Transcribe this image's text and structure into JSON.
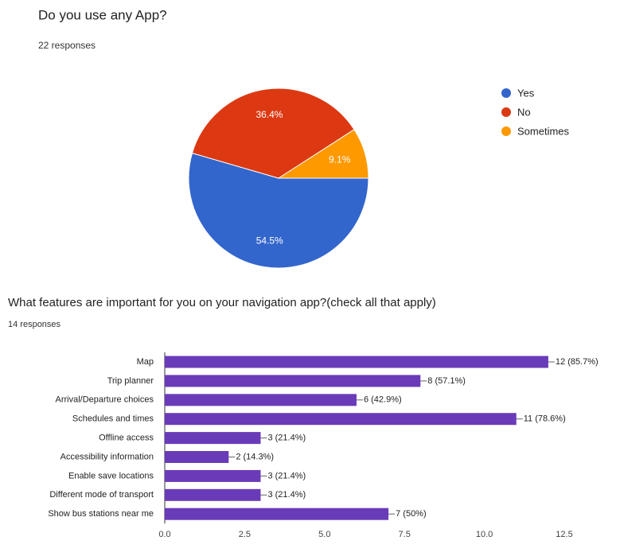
{
  "chart_data": [
    {
      "type": "pie",
      "title": "Do you use any App?",
      "subtitle": "22 responses",
      "categories": [
        "Yes",
        "No",
        "Sometimes"
      ],
      "values": [
        54.5,
        36.4,
        9.1
      ],
      "value_labels": [
        "54.5%",
        "36.4%",
        "9.1%"
      ],
      "colors": [
        "#3366cc",
        "#dc3912",
        "#ff9900"
      ],
      "legend": "right"
    },
    {
      "type": "bar",
      "orientation": "horizontal",
      "title": "What features are important for you on your navigation app?(check all that apply)",
      "subtitle": "14 responses",
      "categories": [
        "Map",
        "Trip planner",
        "Arrival/Departure choices",
        "Schedules and times",
        "Offline access",
        "Accessibility information",
        "Enable save locations",
        "Different mode of transport",
        "Show bus stations near me"
      ],
      "values": [
        12,
        8,
        6,
        11,
        3,
        2,
        3,
        3,
        7
      ],
      "value_labels": [
        "12 (85.7%)",
        "8 (57.1%)",
        "6 (42.9%)",
        "11 (78.6%)",
        "3 (21.4%)",
        "2 (14.3%)",
        "3 (21.4%)",
        "3 (21.4%)",
        "7 (50%)"
      ],
      "color": "#6a3bb8",
      "xlim": [
        0,
        12.5
      ],
      "xticks": [
        {
          "value": 0,
          "label": "0.0"
        },
        2.5,
        {
          "value": 5,
          "label": "5.0"
        },
        7.5,
        {
          "value": 10,
          "label": "10.0"
        },
        12.5
      ]
    }
  ]
}
